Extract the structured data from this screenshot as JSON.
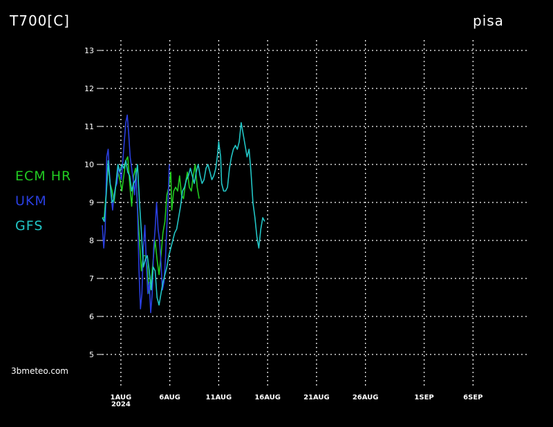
{
  "header": {
    "variable": "T700[C]",
    "location": "pisa"
  },
  "credit": "3bmeteo.com",
  "colors": {
    "ecm": "#22cc22",
    "ukm": "#2a3fe0",
    "gfs": "#22c6c6",
    "grid": "#ffffff",
    "background": "#000000"
  },
  "chart_data": {
    "type": "line",
    "title": "T700[C]",
    "subtitle": "pisa",
    "xlabel": "",
    "ylabel": "",
    "ylim": [
      4.5,
      13.3
    ],
    "xlim_days": [
      -1.9,
      41.7
    ],
    "yticks": [
      5,
      6,
      7,
      8,
      9,
      10,
      11,
      12,
      13
    ],
    "xticks": [
      {
        "day": 0,
        "label": "1AUG",
        "sublabel": "2024"
      },
      {
        "day": 5,
        "label": "6AUG"
      },
      {
        "day": 10,
        "label": "11AUG"
      },
      {
        "day": 15,
        "label": "16AUG"
      },
      {
        "day": 20,
        "label": "21AUG"
      },
      {
        "day": 25,
        "label": "26AUG"
      },
      {
        "day": 31,
        "label": "1SEP"
      },
      {
        "day": 36,
        "label": "6SEP"
      }
    ],
    "grid": true,
    "legend_position": "left",
    "series": [
      {
        "name": "ECM HR",
        "color": "#22cc22",
        "points": [
          [
            -1.9,
            8.6
          ],
          [
            -1.7,
            8.6
          ],
          [
            -1.5,
            9.3
          ],
          [
            -1.3,
            10.0
          ],
          [
            -1.1,
            9.5
          ],
          [
            -0.9,
            9.3
          ],
          [
            -0.7,
            9.0
          ],
          [
            -0.5,
            9.5
          ],
          [
            -0.3,
            9.8
          ],
          [
            -0.1,
            9.6
          ],
          [
            0.1,
            9.3
          ],
          [
            0.3,
            9.7
          ],
          [
            0.5,
            10.1
          ],
          [
            0.7,
            10.2
          ],
          [
            0.9,
            9.5
          ],
          [
            1.1,
            8.9
          ],
          [
            1.3,
            9.7
          ],
          [
            1.5,
            9.9
          ],
          [
            1.7,
            8.9
          ],
          [
            1.9,
            8.0
          ],
          [
            2.1,
            7.2
          ],
          [
            2.3,
            7.6
          ],
          [
            2.5,
            7.6
          ],
          [
            2.7,
            7.3
          ],
          [
            2.9,
            6.6
          ],
          [
            3.1,
            6.9
          ],
          [
            3.3,
            7.5
          ],
          [
            3.5,
            8.0
          ],
          [
            3.7,
            7.5
          ],
          [
            3.9,
            7.1
          ],
          [
            4.1,
            7.6
          ],
          [
            4.3,
            8.2
          ],
          [
            4.5,
            8.5
          ],
          [
            4.7,
            9.2
          ],
          [
            4.9,
            9.4
          ],
          [
            5.1,
            9.8
          ],
          [
            5.2,
            8.8
          ],
          [
            5.4,
            9.3
          ],
          [
            5.6,
            9.4
          ],
          [
            5.8,
            9.3
          ],
          [
            6.0,
            9.7
          ],
          [
            6.2,
            9.2
          ],
          [
            6.4,
            9.1
          ],
          [
            6.6,
            9.5
          ],
          [
            6.8,
            9.8
          ],
          [
            7.0,
            9.4
          ],
          [
            7.2,
            9.3
          ],
          [
            7.4,
            9.7
          ],
          [
            7.6,
            10.0
          ],
          [
            7.8,
            9.4
          ],
          [
            8.0,
            9.1
          ]
        ]
      },
      {
        "name": "UKM",
        "color": "#2a3fe0",
        "points": [
          [
            -1.9,
            8.4
          ],
          [
            -1.75,
            7.8
          ],
          [
            -1.6,
            8.3
          ],
          [
            -1.45,
            10.2
          ],
          [
            -1.3,
            10.4
          ],
          [
            -1.15,
            9.7
          ],
          [
            -1.0,
            9.2
          ],
          [
            -0.85,
            8.8
          ],
          [
            -0.7,
            9.2
          ],
          [
            -0.55,
            9.4
          ],
          [
            -0.4,
            9.5
          ],
          [
            -0.25,
            9.9
          ],
          [
            -0.1,
            9.8
          ],
          [
            0.05,
            9.6
          ],
          [
            0.2,
            10.1
          ],
          [
            0.35,
            10.6
          ],
          [
            0.5,
            11.1
          ],
          [
            0.65,
            11.3
          ],
          [
            0.8,
            10.8
          ],
          [
            0.95,
            10.2
          ],
          [
            1.1,
            9.9
          ],
          [
            1.25,
            9.6
          ],
          [
            1.4,
            9.2
          ],
          [
            1.55,
            9.8
          ],
          [
            1.7,
            8.8
          ],
          [
            1.85,
            7.2
          ],
          [
            2.0,
            6.2
          ],
          [
            2.15,
            6.6
          ],
          [
            2.3,
            7.8
          ],
          [
            2.45,
            8.4
          ],
          [
            2.6,
            7.4
          ],
          [
            2.75,
            6.6
          ],
          [
            2.9,
            6.9
          ],
          [
            3.05,
            6.1
          ],
          [
            3.2,
            6.6
          ],
          [
            3.35,
            7.8
          ],
          [
            3.5,
            8.3
          ],
          [
            3.65,
            9.0
          ],
          [
            3.8,
            8.3
          ],
          [
            3.95,
            8.0
          ],
          [
            4.1,
            7.4
          ],
          [
            4.25,
            6.7
          ],
          [
            4.4,
            6.9
          ],
          [
            4.55,
            7.5
          ],
          [
            4.7,
            8.4
          ],
          [
            4.85,
            9.2
          ],
          [
            4.95,
            10.0
          ]
        ]
      },
      {
        "name": "GFS",
        "color": "#22c6c6",
        "points": [
          [
            -1.9,
            8.6
          ],
          [
            -1.7,
            8.5
          ],
          [
            -1.5,
            9.2
          ],
          [
            -1.3,
            10.1
          ],
          [
            -1.1,
            9.5
          ],
          [
            -0.9,
            9.0
          ],
          [
            -0.7,
            9.1
          ],
          [
            -0.5,
            9.5
          ],
          [
            -0.3,
            10.0
          ],
          [
            -0.1,
            9.8
          ],
          [
            0.1,
            10.0
          ],
          [
            0.3,
            9.9
          ],
          [
            0.5,
            10.1
          ],
          [
            0.7,
            9.8
          ],
          [
            0.9,
            9.7
          ],
          [
            1.1,
            9.3
          ],
          [
            1.3,
            9.5
          ],
          [
            1.5,
            9.6
          ],
          [
            1.7,
            10.0
          ],
          [
            1.9,
            9.0
          ],
          [
            2.1,
            8.2
          ],
          [
            2.3,
            7.3
          ],
          [
            2.5,
            7.5
          ],
          [
            2.7,
            7.6
          ],
          [
            2.9,
            7.2
          ],
          [
            3.1,
            6.7
          ],
          [
            3.3,
            7.3
          ],
          [
            3.5,
            7.2
          ],
          [
            3.7,
            6.5
          ],
          [
            3.9,
            6.3
          ],
          [
            4.1,
            6.6
          ],
          [
            4.3,
            6.9
          ],
          [
            4.5,
            7.1
          ],
          [
            4.7,
            7.3
          ],
          [
            4.9,
            7.6
          ],
          [
            5.1,
            7.8
          ],
          [
            5.3,
            8.0
          ],
          [
            5.5,
            8.2
          ],
          [
            5.7,
            8.3
          ],
          [
            5.9,
            8.6
          ],
          [
            6.1,
            8.9
          ],
          [
            6.3,
            9.3
          ],
          [
            6.5,
            9.4
          ],
          [
            6.7,
            9.6
          ],
          [
            6.9,
            9.7
          ],
          [
            7.1,
            9.9
          ],
          [
            7.3,
            9.7
          ],
          [
            7.5,
            9.5
          ],
          [
            7.7,
            9.8
          ],
          [
            7.9,
            10.0
          ],
          [
            8.1,
            9.7
          ],
          [
            8.3,
            9.5
          ],
          [
            8.5,
            9.6
          ],
          [
            8.7,
            9.9
          ],
          [
            8.9,
            10.0
          ],
          [
            9.1,
            9.8
          ],
          [
            9.3,
            9.6
          ],
          [
            9.5,
            9.7
          ],
          [
            9.7,
            9.9
          ],
          [
            9.9,
            10.3
          ],
          [
            10.0,
            10.6
          ],
          [
            10.2,
            10.2
          ],
          [
            10.3,
            9.5
          ],
          [
            10.5,
            9.3
          ],
          [
            10.7,
            9.3
          ],
          [
            10.9,
            9.4
          ],
          [
            11.1,
            9.9
          ],
          [
            11.3,
            10.2
          ],
          [
            11.5,
            10.4
          ],
          [
            11.7,
            10.5
          ],
          [
            11.9,
            10.4
          ],
          [
            12.1,
            10.6
          ],
          [
            12.3,
            11.1
          ],
          [
            12.5,
            10.8
          ],
          [
            12.7,
            10.5
          ],
          [
            12.9,
            10.2
          ],
          [
            13.1,
            10.4
          ],
          [
            13.3,
            9.8
          ],
          [
            13.5,
            9.0
          ],
          [
            13.7,
            8.6
          ],
          [
            13.9,
            8.1
          ],
          [
            14.1,
            7.8
          ],
          [
            14.3,
            8.3
          ],
          [
            14.5,
            8.6
          ],
          [
            14.7,
            8.5
          ]
        ]
      }
    ]
  }
}
